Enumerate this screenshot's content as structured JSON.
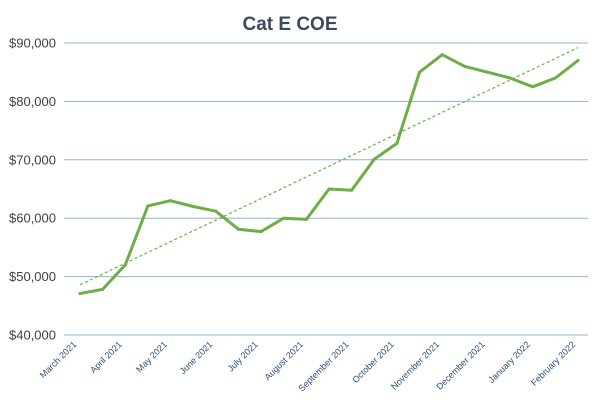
{
  "chart_data": {
    "type": "line",
    "title": "Cat E COE",
    "xlabel": "",
    "ylabel": "",
    "ylim": [
      40000,
      90000
    ],
    "yticks": [
      "$40,000",
      "$50,000",
      "$60,000",
      "$70,000",
      "$80,000",
      "$90,000"
    ],
    "ytick_values": [
      40000,
      50000,
      60000,
      70000,
      80000,
      90000
    ],
    "x_tick_labels": [
      "March 2021",
      "April 2021",
      "May 2021",
      "June 2021",
      "July 2021",
      "August 2021",
      "September 2021",
      "October 2021",
      "November 2021",
      "December 2021",
      "January 2022",
      "February 2022"
    ],
    "grid": "horizontal",
    "legend": "none",
    "series": [
      {
        "points": [
          [
            "March 2021",
            47100
          ],
          [
            "",
            47800
          ],
          [
            "April 2021",
            52000
          ],
          [
            "",
            62100
          ],
          [
            "May 2021",
            63000
          ],
          [
            "",
            62000
          ],
          [
            "June 2021",
            61200
          ],
          [
            "",
            58100
          ],
          [
            "July 2021",
            57700
          ],
          [
            "",
            60000
          ],
          [
            "August 2021",
            59800
          ],
          [
            "",
            65000
          ],
          [
            "",
            64800
          ],
          [
            "September 2021",
            70100
          ],
          [
            "",
            72800
          ],
          [
            "October 2021",
            85000
          ],
          [
            "",
            88000
          ],
          [
            "November 2021",
            86000
          ],
          [
            "",
            85000
          ],
          [
            "December 2021",
            84000
          ],
          [
            "",
            82500
          ],
          [
            "January 2022",
            84000
          ],
          [
            "",
            87000
          ]
        ],
        "color": "#70ad47"
      }
    ],
    "trendline": {
      "style": "dashed",
      "color": "#70ad47",
      "start": 48600,
      "end": 89200
    }
  }
}
